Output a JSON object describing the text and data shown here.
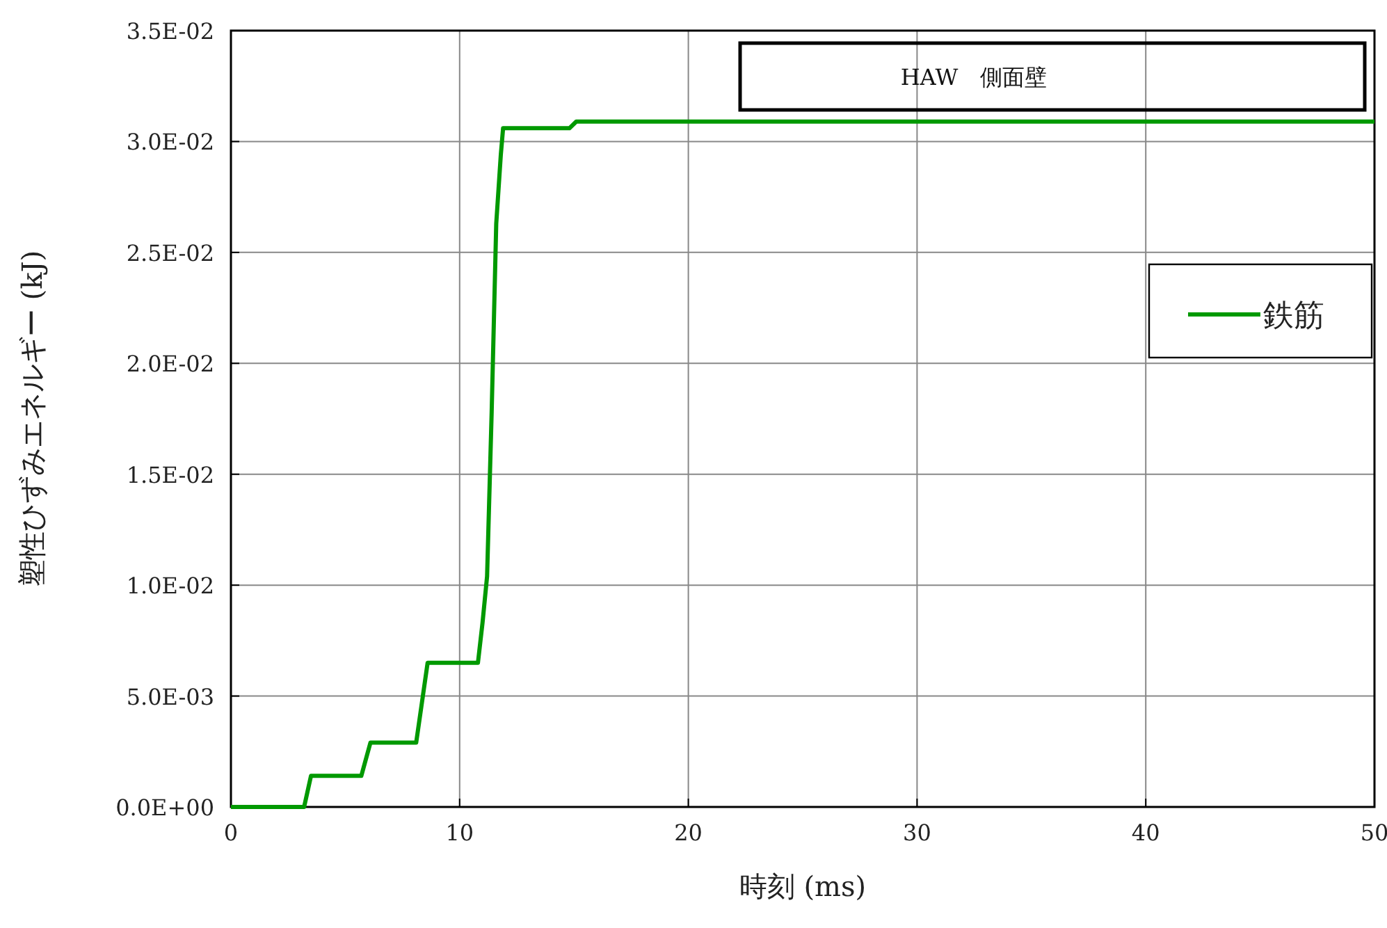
{
  "chart_data": {
    "type": "line",
    "title": "HAW　側面壁",
    "xlabel": "時刻 (ms)",
    "ylabel": "塑性ひずみエネルギー (kJ)",
    "xlim": [
      0,
      50
    ],
    "xticks": [
      0,
      10,
      20,
      30,
      40,
      50
    ],
    "ylim": [
      0,
      0.035
    ],
    "yticks": [
      {
        "value": 0,
        "label": "0.0E+00"
      },
      {
        "value": 0.005,
        "label": "5.0E-03"
      },
      {
        "value": 0.01,
        "label": "1.0E-02"
      },
      {
        "value": 0.015,
        "label": "1.5E-02"
      },
      {
        "value": 0.02,
        "label": "2.0E-02"
      },
      {
        "value": 0.025,
        "label": "2.5E-02"
      },
      {
        "value": 0.03,
        "label": "3.0E-02"
      },
      {
        "value": 0.035,
        "label": "3.5E-02"
      }
    ],
    "grid": true,
    "legend": "right",
    "marker": "none",
    "line_style": "solid",
    "series": [
      {
        "name": "鉄筋",
        "color": "#009900",
        "x": [
          0,
          3.2,
          3.5,
          5.7,
          6.1,
          8.1,
          8.6,
          10.8,
          11.0,
          11.2,
          11.4,
          11.6,
          11.8,
          11.9,
          14.8,
          15.1,
          50
        ],
        "values": [
          0,
          0,
          0.0014,
          0.0014,
          0.0029,
          0.0029,
          0.0065,
          0.0065,
          0.0083,
          0.0104,
          0.0178,
          0.0263,
          0.0294,
          0.0306,
          0.0306,
          0.0309,
          0.0309
        ]
      }
    ]
  }
}
